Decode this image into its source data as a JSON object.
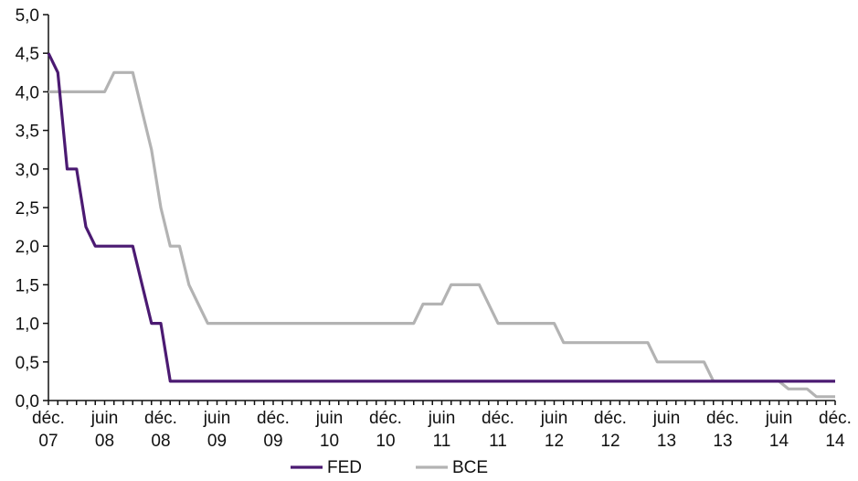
{
  "chart_data": {
    "type": "line",
    "xlabel": "",
    "ylabel": "",
    "ylim": [
      0,
      5
    ],
    "yticks": [
      "0,0",
      "0,5",
      "1,0",
      "1,5",
      "2,0",
      "2,5",
      "3,0",
      "3,5",
      "4,0",
      "4,5",
      "5,0"
    ],
    "xlim": [
      0,
      84
    ],
    "xticks": [
      {
        "t": 0,
        "top": "déc.",
        "bottom": "07"
      },
      {
        "t": 6,
        "top": "juin",
        "bottom": "08"
      },
      {
        "t": 12,
        "top": "déc.",
        "bottom": "08"
      },
      {
        "t": 18,
        "top": "juin",
        "bottom": "09"
      },
      {
        "t": 24,
        "top": "déc.",
        "bottom": "09"
      },
      {
        "t": 30,
        "top": "juin",
        "bottom": "10"
      },
      {
        "t": 36,
        "top": "déc.",
        "bottom": "10"
      },
      {
        "t": 42,
        "top": "juin",
        "bottom": "11"
      },
      {
        "t": 48,
        "top": "déc.",
        "bottom": "11"
      },
      {
        "t": 54,
        "top": "juin",
        "bottom": "12"
      },
      {
        "t": 60,
        "top": "déc.",
        "bottom": "12"
      },
      {
        "t": 66,
        "top": "juin",
        "bottom": "13"
      },
      {
        "t": 72,
        "top": "déc.",
        "bottom": "13"
      },
      {
        "t": 78,
        "top": "juin",
        "bottom": "14"
      },
      {
        "t": 84,
        "top": "déc.",
        "bottom": "14"
      }
    ],
    "grid": false,
    "legend_position": "bottom-center",
    "series": [
      {
        "name": "FED",
        "color": "#4b1a72",
        "points": [
          [
            0,
            4.5
          ],
          [
            1,
            4.25
          ],
          [
            2,
            3.0
          ],
          [
            3,
            3.0
          ],
          [
            4,
            2.25
          ],
          [
            5,
            2.0
          ],
          [
            6,
            2.0
          ],
          [
            7,
            2.0
          ],
          [
            8,
            2.0
          ],
          [
            9,
            2.0
          ],
          [
            10,
            1.5
          ],
          [
            11,
            1.0
          ],
          [
            12,
            1.0
          ],
          [
            13,
            0.25
          ],
          [
            84,
            0.25
          ]
        ]
      },
      {
        "name": "BCE",
        "color": "#b3b3b3",
        "points": [
          [
            0,
            4.0
          ],
          [
            6,
            4.0
          ],
          [
            7,
            4.25
          ],
          [
            9,
            4.25
          ],
          [
            10,
            3.75
          ],
          [
            11,
            3.25
          ],
          [
            12,
            2.5
          ],
          [
            13,
            2.0
          ],
          [
            14,
            2.0
          ],
          [
            15,
            1.5
          ],
          [
            16,
            1.25
          ],
          [
            17,
            1.0
          ],
          [
            39,
            1.0
          ],
          [
            40,
            1.25
          ],
          [
            42,
            1.25
          ],
          [
            43,
            1.5
          ],
          [
            46,
            1.5
          ],
          [
            48,
            1.0
          ],
          [
            54,
            1.0
          ],
          [
            55,
            0.75
          ],
          [
            64,
            0.75
          ],
          [
            65,
            0.5
          ],
          [
            70,
            0.5
          ],
          [
            71,
            0.25
          ],
          [
            78,
            0.25
          ],
          [
            79,
            0.15
          ],
          [
            81,
            0.15
          ],
          [
            82,
            0.05
          ],
          [
            84,
            0.05
          ]
        ]
      }
    ]
  }
}
